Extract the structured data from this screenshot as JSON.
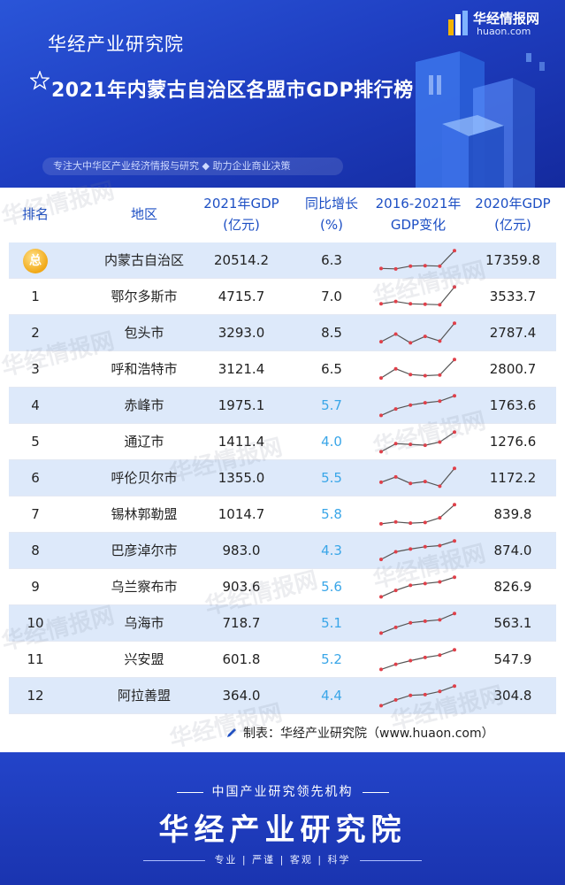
{
  "header": {
    "institute": "华经产业研究院",
    "logo_name": "华经情报网",
    "logo_url": "huaon.com",
    "title": "2021年内蒙古自治区各盟市GDP排行榜",
    "tagline": "专注大中华区产业经济情报与研究 ◆ 助力企业商业决策"
  },
  "table": {
    "headers": {
      "rank": "排名",
      "region": "地区",
      "gdp2021_l1": "2021年GDP",
      "gdp2021_l2": "(亿元)",
      "growth_l1": "同比增长",
      "growth_l2": "(%)",
      "trend_l1": "2016-2021年",
      "trend_l2": "GDP变化",
      "gdp2020_l1": "2020年GDP",
      "gdp2020_l2": "(亿元)"
    }
  },
  "chart_data": {
    "type": "table",
    "columns": [
      "排名",
      "地区",
      "2021年GDP(亿元)",
      "同比增长(%)",
      "2016-2021年GDP变化",
      "2020年GDP(亿元)"
    ],
    "rows": [
      {
        "rank": "总",
        "region": "内蒙古自治区",
        "gdp2021": "20514.2",
        "growth": "6.3",
        "gdp2020": "17359.8",
        "trend": [
          0.18,
          0.16,
          0.28,
          0.3,
          0.28,
          0.95
        ]
      },
      {
        "rank": "1",
        "region": "鄂尔多斯市",
        "gdp2021": "4715.7",
        "growth": "7.0",
        "gdp2020": "3533.7",
        "trend": [
          0.22,
          0.32,
          0.22,
          0.2,
          0.18,
          0.95
        ]
      },
      {
        "rank": "2",
        "region": "包头市",
        "gdp2021": "3293.0",
        "growth": "8.5",
        "gdp2020": "2787.4",
        "trend": [
          0.15,
          0.48,
          0.1,
          0.38,
          0.18,
          0.95
        ]
      },
      {
        "rank": "3",
        "region": "呼和浩特市",
        "gdp2021": "3121.4",
        "growth": "6.5",
        "gdp2020": "2800.7",
        "trend": [
          0.15,
          0.55,
          0.3,
          0.25,
          0.28,
          0.95
        ]
      },
      {
        "rank": "4",
        "region": "赤峰市",
        "gdp2021": "1975.1",
        "growth": "5.7",
        "gdp2020": "1763.6",
        "trend": [
          0.1,
          0.38,
          0.55,
          0.65,
          0.72,
          0.95
        ]
      },
      {
        "rank": "5",
        "region": "通辽市",
        "gdp2021": "1411.4",
        "growth": "4.0",
        "gdp2020": "1276.6",
        "trend": [
          0.1,
          0.45,
          0.42,
          0.38,
          0.52,
          0.95
        ]
      },
      {
        "rank": "6",
        "region": "呼伦贝尔市",
        "gdp2021": "1355.0",
        "growth": "5.5",
        "gdp2020": "1172.2",
        "trend": [
          0.35,
          0.58,
          0.3,
          0.38,
          0.18,
          0.95
        ]
      },
      {
        "rank": "7",
        "region": "锡林郭勒盟",
        "gdp2021": "1014.7",
        "growth": "5.8",
        "gdp2020": "839.8",
        "trend": [
          0.12,
          0.2,
          0.15,
          0.18,
          0.38,
          0.95
        ]
      },
      {
        "rank": "8",
        "region": "巴彦淖尔市",
        "gdp2021": "983.0",
        "growth": "4.3",
        "gdp2020": "874.0",
        "trend": [
          0.15,
          0.48,
          0.6,
          0.7,
          0.75,
          0.95
        ]
      },
      {
        "rank": "9",
        "region": "乌兰察布市",
        "gdp2021": "903.6",
        "growth": "5.6",
        "gdp2020": "826.9",
        "trend": [
          0.1,
          0.38,
          0.6,
          0.68,
          0.75,
          0.95
        ]
      },
      {
        "rank": "10",
        "region": "乌海市",
        "gdp2021": "718.7",
        "growth": "5.1",
        "gdp2020": "563.1",
        "trend": [
          0.1,
          0.35,
          0.55,
          0.62,
          0.68,
          0.95
        ]
      },
      {
        "rank": "11",
        "region": "兴安盟",
        "gdp2021": "601.8",
        "growth": "5.2",
        "gdp2020": "547.9",
        "trend": [
          0.1,
          0.32,
          0.48,
          0.62,
          0.72,
          0.95
        ]
      },
      {
        "rank": "12",
        "region": "阿拉善盟",
        "gdp2021": "364.0",
        "growth": "4.4",
        "gdp2020": "304.8",
        "trend": [
          0.1,
          0.35,
          0.55,
          0.58,
          0.72,
          0.95
        ]
      }
    ]
  },
  "source": "制表：华经产业研究院（www.huaon.com）",
  "footer": {
    "tagline": "中国产业研究领先机构",
    "name": "华经产业研究院",
    "values": "专业 | 严谨 | 客观 | 科学"
  },
  "watermark": {
    "text": "华经情报网",
    "url": "huaon.com"
  },
  "colors": {
    "header_blue": "#2147cc",
    "row_blue": "#dde9fa",
    "header_text": "#1d4fc4",
    "spark_line": "#555555",
    "spark_dot": "#e0404a",
    "growth_low": "#3aa6e8"
  }
}
